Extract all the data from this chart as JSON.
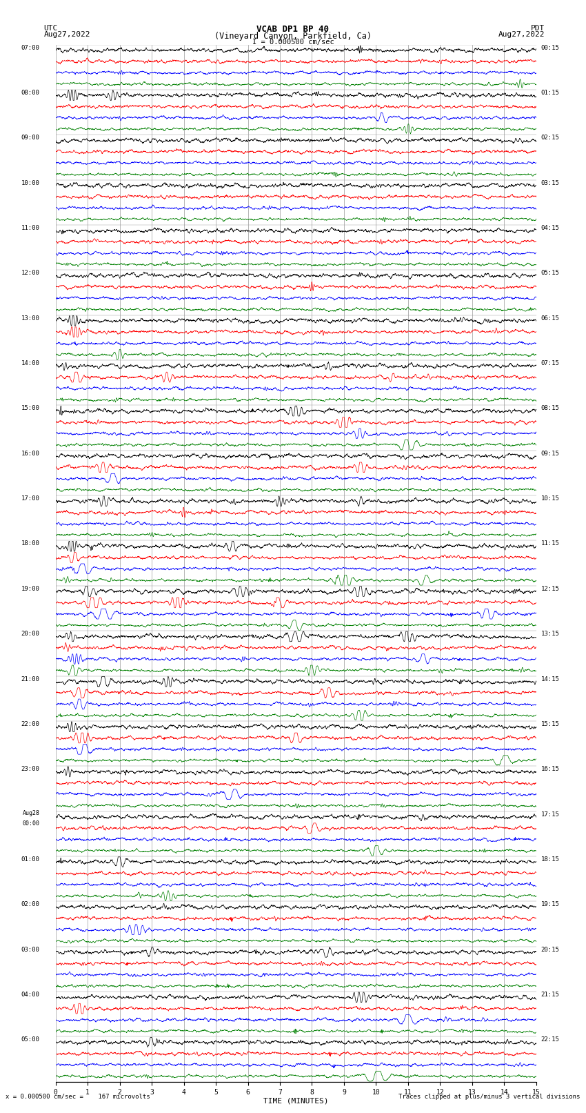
{
  "title_line1": "VCAB DP1 BP 40",
  "title_line2": "(Vineyard Canyon, Parkfield, Ca)",
  "scale_label": "I = 0.000500 cm/sec",
  "left_label_top": "UTC",
  "left_label_date": "Aug27,2022",
  "right_label_top": "PDT",
  "right_label_date": "Aug27,2022",
  "xlabel": "TIME (MINUTES)",
  "bottom_left_note": "= 0.000500 cm/sec =    167 microvolts",
  "bottom_right_note": "Traces clipped at plus/minus 3 vertical divisions",
  "bg_color": "#ffffff",
  "trace_colors": [
    "black",
    "red",
    "blue",
    "green"
  ],
  "grid_color": "#aaaaaa",
  "num_rows": 23,
  "traces_per_row": 4,
  "minutes_per_row": 15,
  "left_times_utc": [
    "07:00",
    "08:00",
    "09:00",
    "10:00",
    "11:00",
    "12:00",
    "13:00",
    "14:00",
    "15:00",
    "16:00",
    "17:00",
    "18:00",
    "19:00",
    "20:00",
    "21:00",
    "22:00",
    "23:00",
    "Aug28\n00:00",
    "01:00",
    "02:00",
    "03:00",
    "04:00",
    "05:00"
  ],
  "right_times_pdt": [
    "00:15",
    "01:15",
    "02:15",
    "03:15",
    "04:15",
    "05:15",
    "06:15",
    "07:15",
    "08:15",
    "09:15",
    "10:15",
    "11:15",
    "12:15",
    "13:15",
    "14:15",
    "15:15",
    "16:15",
    "17:15",
    "18:15",
    "19:15",
    "20:15",
    "21:15",
    "22:15"
  ]
}
